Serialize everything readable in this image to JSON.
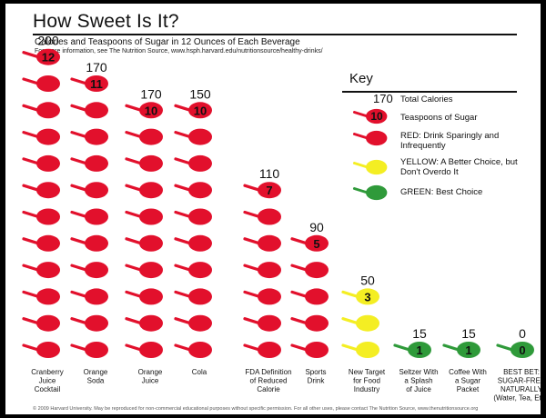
{
  "page": {
    "title": "How Sweet Is It?",
    "subtitle": "Calories and Teaspoons of Sugar in 12 Ounces of Each Beverage",
    "source": "For more information, see The Nutrition Source, www.hsph.harvard.edu/nutritionsource/healthy-drinks/",
    "footer": "© 2009 Harvard University. May be reproduced for non-commercial educational purposes without specific permission. For all other uses, please contact The Nutrition Source, www.thenutritionsource.org"
  },
  "key": {
    "title": "Key",
    "sample_calories": "170",
    "total_calories_label": "Total Calories",
    "sample_teaspoons": "10",
    "teaspoons_label": "Teaspoons of Sugar",
    "red_label": "RED: Drink Sparingly and Infrequently",
    "yellow_label": "YELLOW: A Better Choice, but Don't Overdo It",
    "green_label": "GREEN: Best Choice"
  },
  "colors": {
    "red": "#e2102c",
    "yellow": "#f4ee23",
    "green": "#2f9a3a"
  },
  "chart_data": {
    "type": "bar",
    "title": "How Sweet Is It?",
    "subtitle": "Calories and Teaspoons of Sugar in 12 Ounces of Each Beverage",
    "categories": [
      "Cranberry Juice Cocktail",
      "Orange Soda",
      "Orange Juice",
      "Cola",
      "FDA Definition of Reduced Calorie",
      "Sports Drink",
      "New Target for Food Industry",
      "Seltzer With a Splash of Juice",
      "Coffee With a Sugar Packet",
      "BEST BET: SUGAR-FREE NATURALLY (Water, Tea, Etc.)"
    ],
    "category_lines": [
      [
        "Cranberry",
        "Juice",
        "Cocktail"
      ],
      [
        "Orange",
        "Soda"
      ],
      [
        "Orange",
        "Juice"
      ],
      [
        "Cola"
      ],
      [
        "FDA Definition",
        "of Reduced",
        "Calorie"
      ],
      [
        "Sports",
        "Drink"
      ],
      [
        "New Target",
        "for Food",
        "Industry"
      ],
      [
        "Seltzer With",
        "a Splash",
        "of Juice"
      ],
      [
        "Coffee With",
        "a Sugar",
        "Packet"
      ],
      [
        "BEST BET:",
        "SUGAR-FREE",
        "NATURALLY",
        "(Water, Tea, Etc.)"
      ]
    ],
    "series": [
      {
        "name": "Total Calories",
        "values": [
          200,
          170,
          170,
          150,
          110,
          90,
          50,
          15,
          15,
          0
        ]
      },
      {
        "name": "Teaspoons of Sugar",
        "values": [
          12,
          11,
          10,
          10,
          7,
          5,
          3,
          1,
          1,
          0
        ]
      }
    ],
    "color_category": [
      "red",
      "red",
      "red",
      "red",
      "red",
      "red",
      "yellow",
      "green",
      "green",
      "green"
    ]
  }
}
